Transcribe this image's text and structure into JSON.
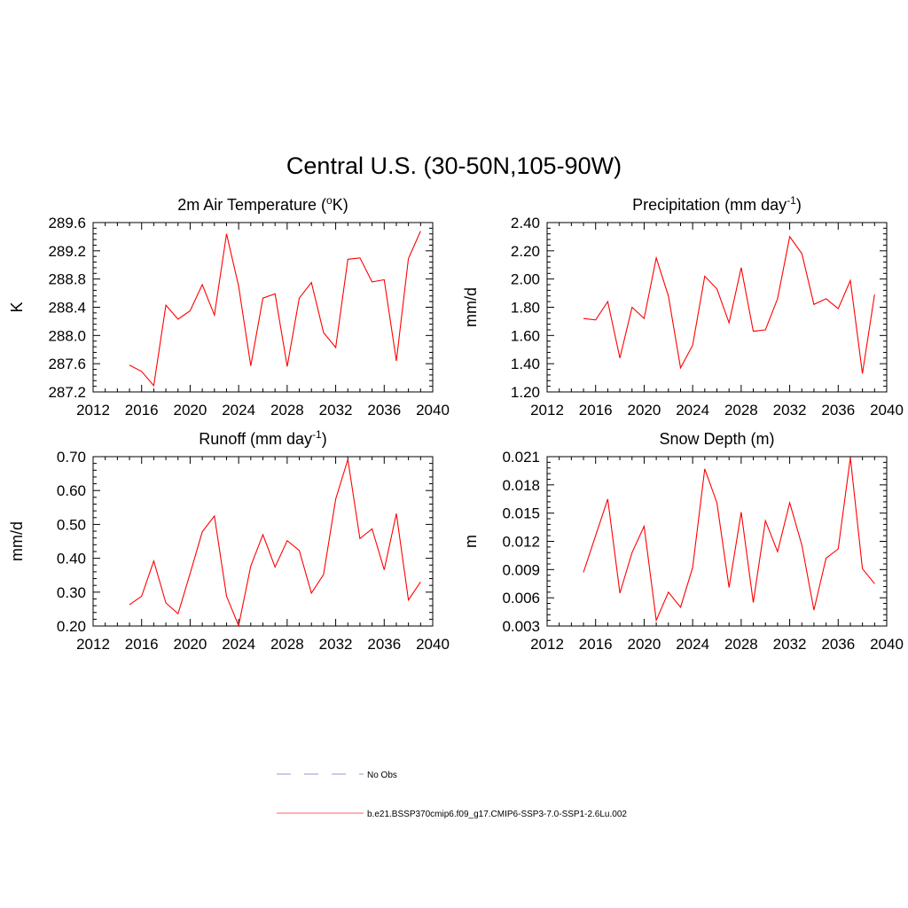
{
  "figure_title": "Central U.S. (30-50N,105-90W)",
  "legend": [
    {
      "label": "No Obs",
      "color": "#aaaadd",
      "style": "dashed"
    },
    {
      "label": "b.e21.BSSP370cmip6.f09_g17.CMIP6-SSP3-7.0-SSP1-2.6Lu.002",
      "color": "#ff8080",
      "style": "solid"
    }
  ],
  "chart_data": [
    {
      "type": "line",
      "title": "2m Air Temperature (",
      "title_sup": "o",
      "title_after": "K)",
      "title_post_sup": "",
      "ylabel": "K",
      "xlim": [
        2012,
        2040
      ],
      "ylim": [
        287.2,
        289.6
      ],
      "xticks": [
        "2012",
        "2016",
        "2020",
        "2024",
        "2028",
        "2032",
        "2036",
        "2040"
      ],
      "yticks": [
        "287.2",
        "287.6",
        "288.0",
        "288.4",
        "288.8",
        "289.2",
        "289.6"
      ],
      "line_color": "#ff0000",
      "series": [
        {
          "x": [
            2015,
            2016,
            2017,
            2018,
            2019,
            2020,
            2021,
            2022,
            2023,
            2024,
            2025,
            2026,
            2027,
            2028,
            2029,
            2030,
            2031,
            2032,
            2033,
            2034,
            2035,
            2036,
            2037,
            2038,
            2039
          ],
          "y": [
            287.58,
            287.49,
            287.29,
            288.43,
            288.23,
            288.35,
            288.72,
            288.29,
            289.44,
            288.7,
            287.57,
            288.53,
            288.59,
            287.56,
            288.53,
            288.75,
            288.04,
            287.83,
            289.08,
            289.1,
            288.76,
            288.79,
            287.64,
            289.09,
            289.48
          ]
        }
      ]
    },
    {
      "type": "line",
      "title": "Precipitation (mm day",
      "title_sup": "-1",
      "title_after": ")",
      "ylabel": "mm/d",
      "xlim": [
        2012,
        2040
      ],
      "ylim": [
        1.2,
        2.4
      ],
      "xticks": [
        "2012",
        "2016",
        "2020",
        "2024",
        "2028",
        "2032",
        "2036",
        "2040"
      ],
      "yticks": [
        "1.20",
        "1.40",
        "1.60",
        "1.80",
        "2.00",
        "2.20",
        "2.40"
      ],
      "line_color": "#ff0000",
      "series": [
        {
          "x": [
            2015,
            2016,
            2017,
            2018,
            2019,
            2020,
            2021,
            2022,
            2023,
            2024,
            2025,
            2026,
            2027,
            2028,
            2029,
            2030,
            2031,
            2032,
            2033,
            2034,
            2035,
            2036,
            2037,
            2038,
            2039
          ],
          "y": [
            1.72,
            1.71,
            1.84,
            1.44,
            1.8,
            1.72,
            2.15,
            1.88,
            1.37,
            1.53,
            2.02,
            1.93,
            1.69,
            2.08,
            1.63,
            1.64,
            1.86,
            2.3,
            2.18,
            1.82,
            1.86,
            1.79,
            1.99,
            1.33,
            1.89
          ]
        }
      ]
    },
    {
      "type": "line",
      "title": "Runoff (mm day",
      "title_sup": "-1",
      "title_after": ")",
      "ylabel": "mm/d",
      "xlim": [
        2012,
        2040
      ],
      "ylim": [
        0.2,
        0.7
      ],
      "xticks": [
        "2012",
        "2016",
        "2020",
        "2024",
        "2028",
        "2032",
        "2036",
        "2040"
      ],
      "yticks": [
        "0.20",
        "0.30",
        "0.40",
        "0.50",
        "0.60",
        "0.70"
      ],
      "line_color": "#ff0000",
      "series": [
        {
          "x": [
            2015,
            2016,
            2017,
            2018,
            2019,
            2020,
            2021,
            2022,
            2023,
            2024,
            2025,
            2026,
            2027,
            2028,
            2029,
            2030,
            2031,
            2032,
            2033,
            2034,
            2035,
            2036,
            2037,
            2038,
            2039
          ],
          "y": [
            0.263,
            0.288,
            0.392,
            0.268,
            0.236,
            0.355,
            0.478,
            0.525,
            0.288,
            0.201,
            0.377,
            0.47,
            0.374,
            0.452,
            0.423,
            0.297,
            0.352,
            0.575,
            0.692,
            0.458,
            0.487,
            0.366,
            0.532,
            0.277,
            0.33
          ]
        }
      ]
    },
    {
      "type": "line",
      "title": "Snow Depth (m)",
      "title_sup": "",
      "title_after": "",
      "ylabel": "m",
      "xlim": [
        2012,
        2040
      ],
      "ylim": [
        0.003,
        0.021
      ],
      "xticks": [
        "2012",
        "2016",
        "2020",
        "2024",
        "2028",
        "2032",
        "2036",
        "2040"
      ],
      "yticks": [
        "0.003",
        "0.006",
        "0.009",
        "0.012",
        "0.015",
        "0.018",
        "0.021"
      ],
      "line_color": "#ff0000",
      "series": [
        {
          "x": [
            2015,
            2016,
            2017,
            2018,
            2019,
            2020,
            2021,
            2022,
            2023,
            2024,
            2025,
            2026,
            2027,
            2028,
            2029,
            2030,
            2031,
            2032,
            2033,
            2034,
            2035,
            2036,
            2037,
            2038,
            2039
          ],
          "y": [
            0.0087,
            0.0126,
            0.0165,
            0.0065,
            0.0108,
            0.0136,
            0.0036,
            0.0066,
            0.005,
            0.0092,
            0.0197,
            0.0161,
            0.0071,
            0.0151,
            0.0055,
            0.0142,
            0.0109,
            0.0161,
            0.0116,
            0.0047,
            0.0102,
            0.0112,
            0.0209,
            0.0091,
            0.0075
          ]
        }
      ]
    }
  ]
}
